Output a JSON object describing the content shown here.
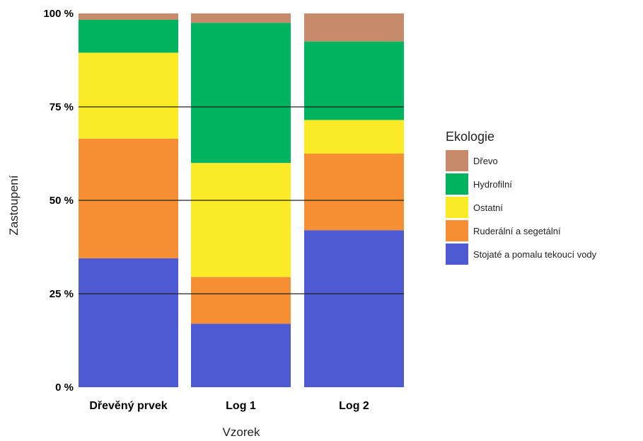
{
  "chart_data": {
    "type": "bar",
    "stacked": true,
    "normalized": true,
    "xlabel": "Vzorek",
    "ylabel": "Zastoupení",
    "ylim": [
      0,
      100
    ],
    "yticks": [
      0,
      25,
      50,
      75,
      100
    ],
    "ytick_labels": [
      "0 %",
      "25 %",
      "50 %",
      "75 %",
      "100 %"
    ],
    "grid": "horizontal lines at 25, 50, 75",
    "categories": [
      "Dřevěný prvek",
      "Log 1",
      "Log 2"
    ],
    "legend": {
      "title": "Ekologie",
      "placement": "right"
    },
    "series": [
      {
        "name": "Stojaté a pomalu tekoucí vody",
        "color": "#4d5ad1",
        "values": [
          34.5,
          17,
          42
        ]
      },
      {
        "name": "Ruderální a segetální",
        "color": "#f68e34",
        "values": [
          32,
          12.5,
          20.5
        ]
      },
      {
        "name": "Ostatní",
        "color": "#fbeb26",
        "values": [
          23,
          30.5,
          9
        ]
      },
      {
        "name": "Hydrofilní",
        "color": "#00b35e",
        "values": [
          8.8,
          37.5,
          21
        ]
      },
      {
        "name": "Dřevo",
        "color": "#c78a6b",
        "values": [
          1.7,
          2.5,
          7.5
        ]
      }
    ],
    "legend_order": [
      "Dřevo",
      "Hydrofilní",
      "Ostatní",
      "Ruderální a segetální",
      "Stojaté a pomalu tekoucí vody"
    ]
  }
}
